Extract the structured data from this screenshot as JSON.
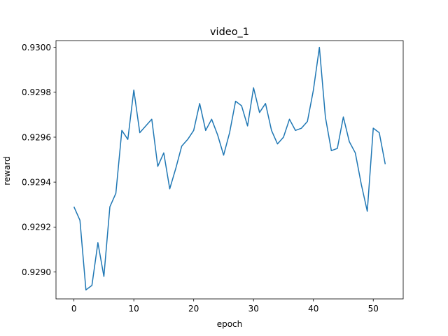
{
  "chart_data": {
    "type": "line",
    "title": "video_1",
    "xlabel": "epoch",
    "ylabel": "reward",
    "xlim": [
      -3,
      55
    ],
    "ylim": [
      0.92888,
      0.93003
    ],
    "xticks": [
      0,
      10,
      20,
      30,
      40,
      50
    ],
    "yticks": [
      0.929,
      0.9292,
      0.9294,
      0.9296,
      0.9298,
      0.93
    ],
    "xtick_labels": [
      "0",
      "10",
      "20",
      "30",
      "40",
      "50"
    ],
    "ytick_labels": [
      "0.9290",
      "0.9292",
      "0.9294",
      "0.9296",
      "0.9298",
      "0.9300"
    ],
    "grid": false,
    "series": [
      {
        "color": "#1f77b4",
        "x": [
          0,
          1,
          2,
          3,
          4,
          5,
          6,
          7,
          8,
          9,
          10,
          11,
          12,
          13,
          14,
          15,
          16,
          17,
          18,
          19,
          20,
          21,
          22,
          23,
          24,
          25,
          26,
          27,
          28,
          29,
          30,
          31,
          32,
          33,
          34,
          35,
          36,
          37,
          38,
          39,
          40,
          41,
          42,
          43,
          44,
          45,
          46,
          47,
          48,
          49,
          50,
          51,
          52
        ],
        "y": [
          0.92929,
          0.92923,
          0.92892,
          0.92894,
          0.92913,
          0.92898,
          0.92929,
          0.92935,
          0.92963,
          0.92959,
          0.92981,
          0.92962,
          0.92965,
          0.92968,
          0.92947,
          0.92953,
          0.92937,
          0.92946,
          0.92956,
          0.92959,
          0.92963,
          0.92975,
          0.92963,
          0.92968,
          0.92961,
          0.92952,
          0.92962,
          0.92976,
          0.92974,
          0.92965,
          0.92982,
          0.92971,
          0.92975,
          0.92963,
          0.92957,
          0.9296,
          0.92968,
          0.92963,
          0.92964,
          0.92967,
          0.92981,
          0.93,
          0.92969,
          0.92954,
          0.92955,
          0.92969,
          0.92958,
          0.92953,
          0.92939,
          0.92927,
          0.92964,
          0.92962,
          0.92948
        ]
      }
    ]
  }
}
